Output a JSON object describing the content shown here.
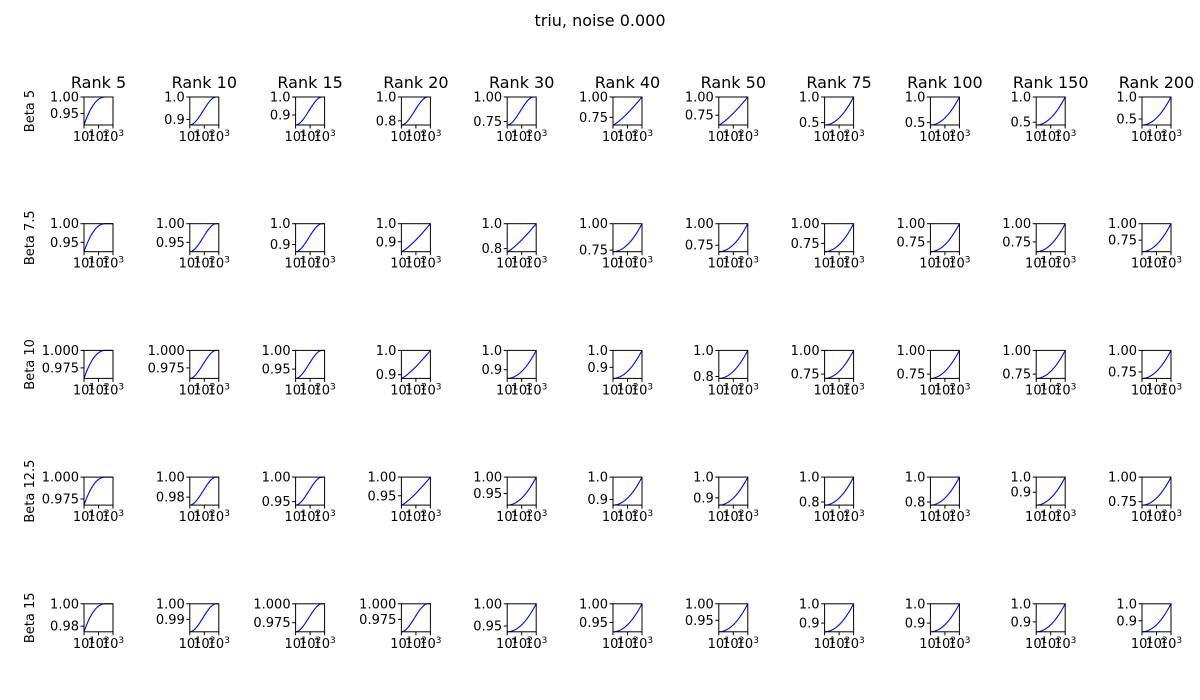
{
  "figure": {
    "title": "triu, noise 0.000",
    "colors": {
      "series": "#0000ff",
      "axes": "#000000",
      "background": "#ffffff"
    }
  },
  "chart_data": {
    "type": "line",
    "grid": false,
    "xscale": "log",
    "xlim": [
      10,
      1000
    ],
    "x_tick_values": [
      10,
      100,
      1000
    ],
    "x_tick_labels": [
      "10",
      "10",
      "10"
    ],
    "x_tick_exponents": [
      "1",
      "2",
      "3"
    ],
    "columns": [
      "Rank 5",
      "Rank 10",
      "Rank 15",
      "Rank 20",
      "Rank 30",
      "Rank 40",
      "Rank 50",
      "Rank 75",
      "Rank 100",
      "Rank 150",
      "Rank 200"
    ],
    "rows": [
      "Beta 5",
      "Beta 7.5",
      "Beta 10",
      "Beta 12.5",
      "Beta 15"
    ],
    "panels": [
      [
        {
          "ylim": [
            0.915,
            1.0
          ],
          "y_ticks": [
            0.95,
            1.0
          ],
          "y_tick_labels": [
            "0.95",
            "1.00"
          ],
          "curve": {
            "start": 0.915,
            "shape": "concave"
          }
        },
        {
          "ylim": [
            0.875,
            1.0
          ],
          "y_ticks": [
            0.9,
            1.0
          ],
          "y_tick_labels": [
            "0.9",
            "1.0"
          ],
          "curve": {
            "start": 0.875,
            "shape": "s"
          }
        },
        {
          "ylim": [
            0.845,
            1.0
          ],
          "y_ticks": [
            0.9,
            1.0
          ],
          "y_tick_labels": [
            "0.9",
            "1.0"
          ],
          "curve": {
            "start": 0.845,
            "shape": "s"
          }
        },
        {
          "ylim": [
            0.765,
            1.0
          ],
          "y_ticks": [
            0.8,
            1.0
          ],
          "y_tick_labels": [
            "0.8",
            "1.0"
          ],
          "curve": {
            "start": 0.765,
            "shape": "s"
          }
        },
        {
          "ylim": [
            0.715,
            1.0
          ],
          "y_ticks": [
            0.75,
            1.0
          ],
          "y_tick_labels": [
            "0.75",
            "1.00"
          ],
          "curve": {
            "start": 0.715,
            "shape": "s"
          }
        },
        {
          "ylim": [
            0.655,
            1.0
          ],
          "y_ticks": [
            0.75,
            1.0
          ],
          "y_tick_labels": [
            "0.75",
            "1.00"
          ],
          "curve": {
            "start": 0.655,
            "shape": "lin"
          }
        },
        {
          "ylim": [
            0.615,
            1.0
          ],
          "y_ticks": [
            0.75,
            1.0
          ],
          "y_tick_labels": [
            "0.75",
            "1.00"
          ],
          "curve": {
            "start": 0.615,
            "shape": "lin"
          }
        },
        {
          "ylim": [
            0.455,
            1.0
          ],
          "y_ticks": [
            0.5,
            1.0
          ],
          "y_tick_labels": [
            "0.5",
            "1.0"
          ],
          "curve": {
            "start": 0.455,
            "shape": "convex"
          }
        },
        {
          "ylim": [
            0.455,
            1.0
          ],
          "y_ticks": [
            0.5,
            1.0
          ],
          "y_tick_labels": [
            "0.5",
            "1.0"
          ],
          "curve": {
            "start": 0.455,
            "shape": "convex"
          }
        },
        {
          "ylim": [
            0.445,
            1.0
          ],
          "y_ticks": [
            0.5,
            1.0
          ],
          "y_tick_labels": [
            "0.5",
            "1.0"
          ],
          "curve": {
            "start": 0.445,
            "shape": "convex"
          }
        },
        {
          "ylim": [
            0.365,
            1.0
          ],
          "y_ticks": [
            0.5,
            1.0
          ],
          "y_tick_labels": [
            "0.5",
            "1.0"
          ],
          "curve": {
            "start": 0.365,
            "shape": "convex"
          }
        }
      ],
      [
        {
          "ylim": [
            0.925,
            1.0
          ],
          "y_ticks": [
            0.95,
            1.0
          ],
          "y_tick_labels": [
            "0.95",
            "1.00"
          ],
          "curve": {
            "start": 0.925,
            "shape": "concave"
          }
        },
        {
          "ylim": [
            0.925,
            1.0
          ],
          "y_ticks": [
            0.95,
            1.0
          ],
          "y_tick_labels": [
            "0.95",
            "1.00"
          ],
          "curve": {
            "start": 0.925,
            "shape": "s"
          }
        },
        {
          "ylim": [
            0.865,
            1.0
          ],
          "y_ticks": [
            0.9,
            1.0
          ],
          "y_tick_labels": [
            "0.9",
            "1.0"
          ],
          "curve": {
            "start": 0.865,
            "shape": "s"
          }
        },
        {
          "ylim": [
            0.845,
            1.0
          ],
          "y_ticks": [
            0.9,
            1.0
          ],
          "y_tick_labels": [
            "0.9",
            "1.0"
          ],
          "curve": {
            "start": 0.845,
            "shape": "lin"
          }
        },
        {
          "ylim": [
            0.775,
            1.0
          ],
          "y_ticks": [
            0.8,
            1.0
          ],
          "y_tick_labels": [
            "0.8",
            "1.0"
          ],
          "curve": {
            "start": 0.775,
            "shape": "lin"
          }
        },
        {
          "ylim": [
            0.735,
            1.0
          ],
          "y_ticks": [
            0.75,
            1.0
          ],
          "y_tick_labels": [
            "0.75",
            "1.00"
          ],
          "curve": {
            "start": 0.735,
            "shape": "convex"
          }
        },
        {
          "ylim": [
            0.675,
            1.0
          ],
          "y_ticks": [
            0.75,
            1.0
          ],
          "y_tick_labels": [
            "0.75",
            "1.00"
          ],
          "curve": {
            "start": 0.675,
            "shape": "convex"
          }
        },
        {
          "ylim": [
            0.645,
            1.0
          ],
          "y_ticks": [
            0.75,
            1.0
          ],
          "y_tick_labels": [
            "0.75",
            "1.00"
          ],
          "curve": {
            "start": 0.645,
            "shape": "convex"
          }
        },
        {
          "ylim": [
            0.615,
            1.0
          ],
          "y_ticks": [
            0.75,
            1.0
          ],
          "y_tick_labels": [
            "0.75",
            "1.00"
          ],
          "curve": {
            "start": 0.615,
            "shape": "convex"
          }
        },
        {
          "ylim": [
            0.615,
            1.0
          ],
          "y_ticks": [
            0.75,
            1.0
          ],
          "y_tick_labels": [
            "0.75",
            "1.00"
          ],
          "curve": {
            "start": 0.615,
            "shape": "convex"
          }
        },
        {
          "ylim": [
            0.575,
            1.0
          ],
          "y_ticks": [
            0.75,
            1.0
          ],
          "y_tick_labels": [
            "0.75",
            "1.00"
          ],
          "curve": {
            "start": 0.575,
            "shape": "convex"
          }
        }
      ],
      [
        {
          "ylim": [
            0.96,
            1.0
          ],
          "y_ticks": [
            0.975,
            1.0
          ],
          "y_tick_labels": [
            "0.975",
            "1.000"
          ],
          "curve": {
            "start": 0.96,
            "shape": "concave"
          }
        },
        {
          "ylim": [
            0.96,
            1.0
          ],
          "y_ticks": [
            0.975,
            1.0
          ],
          "y_tick_labels": [
            "0.975",
            "1.000"
          ],
          "curve": {
            "start": 0.96,
            "shape": "s"
          }
        },
        {
          "ylim": [
            0.925,
            1.0
          ],
          "y_ticks": [
            0.95,
            1.0
          ],
          "y_tick_labels": [
            "0.95",
            "1.00"
          ],
          "curve": {
            "start": 0.925,
            "shape": "s"
          }
        },
        {
          "ylim": [
            0.885,
            1.0
          ],
          "y_ticks": [
            0.9,
            1.0
          ],
          "y_tick_labels": [
            "0.9",
            "1.0"
          ],
          "curve": {
            "start": 0.885,
            "shape": "lin"
          }
        },
        {
          "ylim": [
            0.855,
            1.0
          ],
          "y_ticks": [
            0.9,
            1.0
          ],
          "y_tick_labels": [
            "0.9",
            "1.0"
          ],
          "curve": {
            "start": 0.855,
            "shape": "convex"
          }
        },
        {
          "ylim": [
            0.835,
            1.0
          ],
          "y_ticks": [
            0.9,
            1.0
          ],
          "y_tick_labels": [
            "0.9",
            "1.0"
          ],
          "curve": {
            "start": 0.835,
            "shape": "convex"
          }
        },
        {
          "ylim": [
            0.785,
            1.0
          ],
          "y_ticks": [
            0.8,
            1.0
          ],
          "y_tick_labels": [
            "0.8",
            "1.0"
          ],
          "curve": {
            "start": 0.785,
            "shape": "convex"
          }
        },
        {
          "ylim": [
            0.705,
            1.0
          ],
          "y_ticks": [
            0.75,
            1.0
          ],
          "y_tick_labels": [
            "0.75",
            "1.00"
          ],
          "curve": {
            "start": 0.705,
            "shape": "convex"
          }
        },
        {
          "ylim": [
            0.705,
            1.0
          ],
          "y_ticks": [
            0.75,
            1.0
          ],
          "y_tick_labels": [
            "0.75",
            "1.00"
          ],
          "curve": {
            "start": 0.705,
            "shape": "convex"
          }
        },
        {
          "ylim": [
            0.705,
            1.0
          ],
          "y_ticks": [
            0.75,
            1.0
          ],
          "y_tick_labels": [
            "0.75",
            "1.00"
          ],
          "curve": {
            "start": 0.705,
            "shape": "convex"
          }
        },
        {
          "ylim": [
            0.675,
            1.0
          ],
          "y_ticks": [
            0.75,
            1.0
          ],
          "y_tick_labels": [
            "0.75",
            "1.00"
          ],
          "curve": {
            "start": 0.675,
            "shape": "convex"
          }
        }
      ],
      [
        {
          "ylim": [
            0.968,
            1.0
          ],
          "y_ticks": [
            0.975,
            1.0
          ],
          "y_tick_labels": [
            "0.975",
            "1.000"
          ],
          "curve": {
            "start": 0.968,
            "shape": "concave"
          }
        },
        {
          "ylim": [
            0.972,
            1.0
          ],
          "y_ticks": [
            0.98,
            1.0
          ],
          "y_tick_labels": [
            "0.98",
            "1.00"
          ],
          "curve": {
            "start": 0.972,
            "shape": "s"
          }
        },
        {
          "ylim": [
            0.943,
            1.0
          ],
          "y_ticks": [
            0.95,
            1.0
          ],
          "y_tick_labels": [
            "0.95",
            "1.00"
          ],
          "curve": {
            "start": 0.943,
            "shape": "s"
          }
        },
        {
          "ylim": [
            0.925,
            1.0
          ],
          "y_ticks": [
            0.95,
            1.0
          ],
          "y_tick_labels": [
            "0.95",
            "1.00"
          ],
          "curve": {
            "start": 0.925,
            "shape": "lin"
          }
        },
        {
          "ylim": [
            0.915,
            1.0
          ],
          "y_ticks": [
            0.95,
            1.0
          ],
          "y_tick_labels": [
            "0.95",
            "1.00"
          ],
          "curve": {
            "start": 0.915,
            "shape": "convex"
          }
        },
        {
          "ylim": [
            0.875,
            1.0
          ],
          "y_ticks": [
            0.9,
            1.0
          ],
          "y_tick_labels": [
            "0.9",
            "1.0"
          ],
          "curve": {
            "start": 0.875,
            "shape": "convex"
          }
        },
        {
          "ylim": [
            0.865,
            1.0
          ],
          "y_ticks": [
            0.9,
            1.0
          ],
          "y_tick_labels": [
            "0.9",
            "1.0"
          ],
          "curve": {
            "start": 0.865,
            "shape": "convex"
          }
        },
        {
          "ylim": [
            0.775,
            1.0
          ],
          "y_ticks": [
            0.8,
            1.0
          ],
          "y_tick_labels": [
            "0.8",
            "1.0"
          ],
          "curve": {
            "start": 0.775,
            "shape": "convex"
          }
        },
        {
          "ylim": [
            0.775,
            1.0
          ],
          "y_ticks": [
            0.8,
            1.0
          ],
          "y_tick_labels": [
            "0.8",
            "1.0"
          ],
          "curve": {
            "start": 0.775,
            "shape": "convex"
          }
        },
        {
          "ylim": [
            0.815,
            1.0
          ],
          "y_ticks": [
            0.9,
            1.0
          ],
          "y_tick_labels": [
            "0.9",
            "1.0"
          ],
          "curve": {
            "start": 0.815,
            "shape": "convex"
          }
        },
        {
          "ylim": [
            0.715,
            1.0
          ],
          "y_ticks": [
            0.75,
            1.0
          ],
          "y_tick_labels": [
            "0.75",
            "1.00"
          ],
          "curve": {
            "start": 0.715,
            "shape": "convex"
          }
        }
      ],
      [
        {
          "ylim": [
            0.975,
            1.0
          ],
          "y_ticks": [
            0.98,
            1.0
          ],
          "y_tick_labels": [
            "0.98",
            "1.00"
          ],
          "curve": {
            "start": 0.975,
            "shape": "concave"
          }
        },
        {
          "ylim": [
            0.982,
            1.0
          ],
          "y_ticks": [
            0.99,
            1.0
          ],
          "y_tick_labels": [
            "0.99",
            "1.00"
          ],
          "curve": {
            "start": 0.982,
            "shape": "s"
          }
        },
        {
          "ylim": [
            0.963,
            1.0
          ],
          "y_ticks": [
            0.975,
            1.0
          ],
          "y_tick_labels": [
            "0.975",
            "1.000"
          ],
          "curve": {
            "start": 0.963,
            "shape": "s"
          }
        },
        {
          "ylim": [
            0.955,
            1.0
          ],
          "y_ticks": [
            0.975,
            1.0
          ],
          "y_tick_labels": [
            "0.975",
            "1.000"
          ],
          "curve": {
            "start": 0.955,
            "shape": "s"
          }
        },
        {
          "ylim": [
            0.937,
            1.0
          ],
          "y_ticks": [
            0.95,
            1.0
          ],
          "y_tick_labels": [
            "0.95",
            "1.00"
          ],
          "curve": {
            "start": 0.937,
            "shape": "convex"
          }
        },
        {
          "ylim": [
            0.925,
            1.0
          ],
          "y_ticks": [
            0.95,
            1.0
          ],
          "y_tick_labels": [
            "0.95",
            "1.00"
          ],
          "curve": {
            "start": 0.925,
            "shape": "convex"
          }
        },
        {
          "ylim": [
            0.915,
            1.0
          ],
          "y_ticks": [
            0.95,
            1.0
          ],
          "y_tick_labels": [
            "0.95",
            "1.00"
          ],
          "curve": {
            "start": 0.915,
            "shape": "convex"
          }
        },
        {
          "ylim": [
            0.855,
            1.0
          ],
          "y_ticks": [
            0.9,
            1.0
          ],
          "y_tick_labels": [
            "0.9",
            "1.0"
          ],
          "curve": {
            "start": 0.855,
            "shape": "convex"
          }
        },
        {
          "ylim": [
            0.855,
            1.0
          ],
          "y_ticks": [
            0.9,
            1.0
          ],
          "y_tick_labels": [
            "0.9",
            "1.0"
          ],
          "curve": {
            "start": 0.855,
            "shape": "convex"
          }
        },
        {
          "ylim": [
            0.845,
            1.0
          ],
          "y_ticks": [
            0.9,
            1.0
          ],
          "y_tick_labels": [
            "0.9",
            "1.0"
          ],
          "curve": {
            "start": 0.845,
            "shape": "convex"
          }
        },
        {
          "ylim": [
            0.835,
            1.0
          ],
          "y_ticks": [
            0.9,
            1.0
          ],
          "y_tick_labels": [
            "0.9",
            "1.0"
          ],
          "curve": {
            "start": 0.835,
            "shape": "convex"
          }
        }
      ]
    ]
  }
}
